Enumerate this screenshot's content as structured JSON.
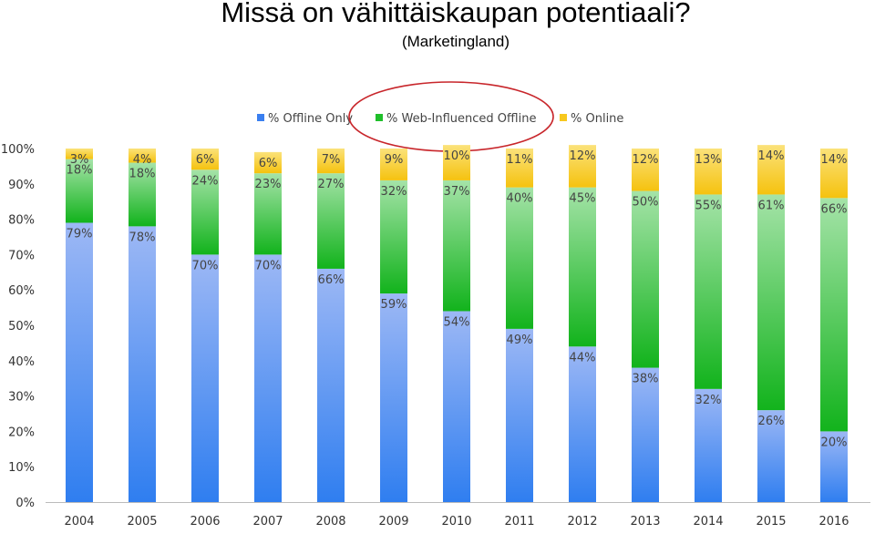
{
  "title": "Missä on vähittäiskaupan potentiaali?",
  "subtitle": "(Marketingland)",
  "chart_data": {
    "type": "bar",
    "stacked": true,
    "categories": [
      "2004",
      "2005",
      "2006",
      "2007",
      "2008",
      "2009",
      "2010",
      "2011",
      "2012",
      "2013",
      "2014",
      "2015",
      "2016"
    ],
    "series": [
      {
        "name": "% Offline Only",
        "color": "#3a7ff0",
        "values": [
          79,
          78,
          70,
          70,
          66,
          59,
          54,
          49,
          44,
          38,
          32,
          26,
          20
        ],
        "labels": [
          "79%",
          "78%",
          "70%",
          "70%",
          "66%",
          "59%",
          "54%",
          "49%",
          "44%",
          "38%",
          "32%",
          "26%",
          "20%"
        ]
      },
      {
        "name": "% Web-Influenced Offline",
        "color": "#1fbf2a",
        "values": [
          18,
          18,
          24,
          23,
          27,
          32,
          37,
          40,
          45,
          50,
          55,
          61,
          66
        ],
        "labels": [
          "18%",
          "18%",
          "24%",
          "23%",
          "27%",
          "32%",
          "37%",
          "40%",
          "45%",
          "50%",
          "55%",
          "61%",
          "66%"
        ]
      },
      {
        "name": "% Online",
        "color": "#f7c81e",
        "values": [
          3,
          4,
          6,
          6,
          7,
          9,
          10,
          11,
          12,
          12,
          13,
          14,
          14
        ],
        "labels": [
          "3%",
          "4%",
          "6%",
          "6%",
          "7%",
          "9%",
          "10%",
          "11%",
          "12%",
          "12%",
          "13%",
          "14%",
          "14%"
        ]
      }
    ],
    "yticks": [
      "0%",
      "10%",
      "20%",
      "30%",
      "40%",
      "50%",
      "60%",
      "70%",
      "80%",
      "90%",
      "100%"
    ],
    "ylim": [
      0,
      100
    ],
    "legend": "top-center",
    "grid": false,
    "highlight": "% Web-Influenced Offline",
    "highlight_color": "#c8262b"
  }
}
